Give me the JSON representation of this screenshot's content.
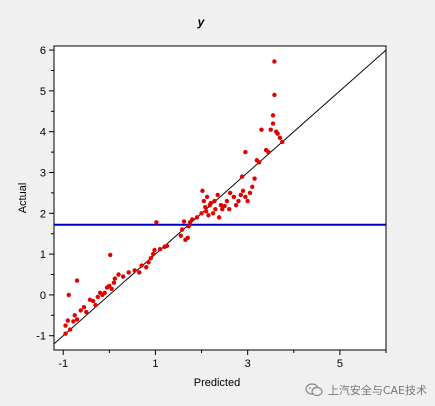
{
  "chart_data": {
    "type": "scatter",
    "title": "y",
    "xlabel": "Predicted",
    "ylabel": "Actual",
    "xlim": [
      -1.2,
      6.0
    ],
    "ylim": [
      -1.35,
      6.1
    ],
    "x_ticks": [
      -1,
      1,
      3,
      5
    ],
    "y_ticks": [
      -1,
      0,
      1,
      2,
      3,
      4,
      5,
      6
    ],
    "x_tick_labels": [
      "-1",
      "1",
      "3",
      "5"
    ],
    "y_tick_labels": [
      "-1",
      "0",
      "1",
      "2",
      "3",
      "4",
      "5",
      "6"
    ],
    "grid": false,
    "point_color": "#e00000",
    "reference_line": {
      "type": "diagonal",
      "from": [
        -1.2,
        -1.2
      ],
      "to": [
        6.0,
        6.0
      ],
      "color": "#000000"
    },
    "horizontal_line": {
      "y": 1.72,
      "color": "#0000c0"
    },
    "points": [
      [
        -0.95,
        -0.95
      ],
      [
        -0.95,
        -0.75
      ],
      [
        -0.9,
        -0.63
      ],
      [
        -0.85,
        -0.85
      ],
      [
        -0.88,
        0.0
      ],
      [
        -0.78,
        -0.65
      ],
      [
        -0.75,
        -0.5
      ],
      [
        -0.7,
        0.35
      ],
      [
        -0.7,
        -0.6
      ],
      [
        -0.62,
        -0.38
      ],
      [
        -0.55,
        -0.3
      ],
      [
        -0.5,
        -0.42
      ],
      [
        -0.42,
        -0.12
      ],
      [
        -0.35,
        -0.15
      ],
      [
        -0.3,
        -0.25
      ],
      [
        -0.25,
        -0.05
      ],
      [
        -0.2,
        0.05
      ],
      [
        -0.15,
        0.0
      ],
      [
        -0.1,
        0.05
      ],
      [
        -0.05,
        0.18
      ],
      [
        0.0,
        0.22
      ],
      [
        0.02,
        0.98
      ],
      [
        0.05,
        0.15
      ],
      [
        0.1,
        0.3
      ],
      [
        0.12,
        0.4
      ],
      [
        0.2,
        0.5
      ],
      [
        0.3,
        0.45
      ],
      [
        0.42,
        0.55
      ],
      [
        0.55,
        0.6
      ],
      [
        0.65,
        0.55
      ],
      [
        0.7,
        0.72
      ],
      [
        0.8,
        0.68
      ],
      [
        0.85,
        0.8
      ],
      [
        0.9,
        0.9
      ],
      [
        0.95,
        1.0
      ],
      [
        0.98,
        1.1
      ],
      [
        1.02,
        1.78
      ],
      [
        1.1,
        1.12
      ],
      [
        1.2,
        1.18
      ],
      [
        1.25,
        1.2
      ],
      [
        1.55,
        1.45
      ],
      [
        1.58,
        1.6
      ],
      [
        1.62,
        1.8
      ],
      [
        1.65,
        1.35
      ],
      [
        1.7,
        1.4
      ],
      [
        1.72,
        1.68
      ],
      [
        1.75,
        1.78
      ],
      [
        1.8,
        1.85
      ],
      [
        1.9,
        1.9
      ],
      [
        2.0,
        2.0
      ],
      [
        2.02,
        2.55
      ],
      [
        2.05,
        2.3
      ],
      [
        2.08,
        2.15
      ],
      [
        2.1,
        2.05
      ],
      [
        2.12,
        2.4
      ],
      [
        2.15,
        1.95
      ],
      [
        2.18,
        2.2
      ],
      [
        2.2,
        2.25
      ],
      [
        2.25,
        2.0
      ],
      [
        2.28,
        2.3
      ],
      [
        2.3,
        2.1
      ],
      [
        2.35,
        2.45
      ],
      [
        2.38,
        1.9
      ],
      [
        2.42,
        2.2
      ],
      [
        2.45,
        2.1
      ],
      [
        2.5,
        2.18
      ],
      [
        2.55,
        2.3
      ],
      [
        2.6,
        2.1
      ],
      [
        2.62,
        2.5
      ],
      [
        2.7,
        2.4
      ],
      [
        2.75,
        2.2
      ],
      [
        2.8,
        2.3
      ],
      [
        2.85,
        2.45
      ],
      [
        2.88,
        2.9
      ],
      [
        2.9,
        2.55
      ],
      [
        2.95,
        2.4
      ],
      [
        3.0,
        2.3
      ],
      [
        3.05,
        2.5
      ],
      [
        3.1,
        2.65
      ],
      [
        3.15,
        2.85
      ],
      [
        3.2,
        3.3
      ],
      [
        3.25,
        3.25
      ],
      [
        3.3,
        4.05
      ],
      [
        3.4,
        3.55
      ],
      [
        3.45,
        3.5
      ],
      [
        3.5,
        4.05
      ],
      [
        3.55,
        4.2
      ],
      [
        3.55,
        4.4
      ],
      [
        3.58,
        4.9
      ],
      [
        3.58,
        5.72
      ],
      [
        3.62,
        4.0
      ],
      [
        3.65,
        3.95
      ],
      [
        3.7,
        3.85
      ],
      [
        3.75,
        3.75
      ],
      [
        2.95,
        3.5
      ]
    ]
  },
  "watermark": {
    "text": "上汽安全与CAE技术"
  }
}
